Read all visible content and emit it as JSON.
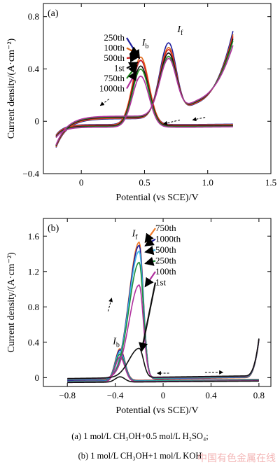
{
  "chart_data": [
    {
      "type": "line",
      "panel": "(a)",
      "xlabel": "Potential (vs SCE)/V",
      "ylabel": "Current density/(A·cm⁻²)",
      "xlim": [
        -0.3,
        1.5
      ],
      "ylim": [
        -0.4,
        0.9
      ],
      "xticks": [
        0,
        0.5,
        1.0,
        1.5
      ],
      "xtick_labels": [
        "0",
        "0.5",
        "1.0",
        "1.5"
      ],
      "yticks": [
        -0.4,
        0,
        0.4,
        0.8
      ],
      "ytick_labels": [
        "−0.4",
        "0",
        "0.4",
        "0.8"
      ],
      "peak_labels": [
        {
          "text": "I",
          "sub": "b",
          "x": 0.48,
          "y": 0.58
        },
        {
          "text": "I",
          "sub": "f",
          "x": 0.76,
          "y": 0.68
        }
      ],
      "legend_order": [
        "250th",
        "100th",
        "500th",
        "1st",
        "750th",
        "1000th"
      ],
      "series": [
        {
          "name": "250th",
          "color": "#1f1f9e",
          "ib": 0.49,
          "if": 0.61,
          "end": 0.83
        },
        {
          "name": "100th",
          "color": "#e06a1b",
          "ib": 0.52,
          "if": 0.57,
          "end": 0.8
        },
        {
          "name": "500th",
          "color": "#d62020",
          "ib": 0.5,
          "if": 0.55,
          "end": 0.78
        },
        {
          "name": "1st",
          "color": "#111111",
          "ib": 0.46,
          "if": 0.52,
          "end": 0.76
        },
        {
          "name": "750th",
          "color": "#228b22",
          "ib": 0.44,
          "if": 0.49,
          "end": 0.74
        },
        {
          "name": "1000th",
          "color": "#b0309e",
          "ib": 0.39,
          "if": 0.47,
          "end": 0.7
        }
      ],
      "grid": false
    },
    {
      "type": "line",
      "panel": "(b)",
      "xlabel": "Potential (vs SCE)/V",
      "ylabel": "Current density/(A·cm⁻²)",
      "xlim": [
        -1.0,
        0.9
      ],
      "ylim": [
        -0.1,
        1.8
      ],
      "xticks": [
        -0.8,
        -0.4,
        0,
        0.4,
        0.8
      ],
      "xtick_labels": [
        "−0.8",
        "−0.4",
        "0",
        "0.4",
        "0.8"
      ],
      "yticks": [
        0,
        0.4,
        0.8,
        1.2,
        1.6
      ],
      "ytick_labels": [
        "0",
        "0.4",
        "0.8",
        "1.2",
        "1.6"
      ],
      "peak_labels": [
        {
          "text": "I",
          "sub": "f",
          "x": -0.26,
          "y": 1.6
        },
        {
          "text": "I",
          "sub": "b",
          "x": -0.42,
          "y": 0.38
        }
      ],
      "legend_order": [
        "750th",
        "1000th",
        "500th",
        "250th",
        "100th",
        "1st"
      ],
      "series": [
        {
          "name": "750th",
          "color": "#f07a28",
          "if": 1.55,
          "ib": 0.36
        },
        {
          "name": "1000th",
          "color": "#1f1f9e",
          "if": 1.51,
          "ib": 0.35
        },
        {
          "name": "500th",
          "color": "#3fb6e6",
          "if": 1.44,
          "ib": 0.33
        },
        {
          "name": "250th",
          "color": "#1e8f3e",
          "if": 1.31,
          "ib": 0.31
        },
        {
          "name": "100th",
          "color": "#b0309e",
          "if": 1.05,
          "ib": 0.28
        },
        {
          "name": "1st",
          "color": "#111111",
          "if": 0.33,
          "ib": 0.06
        }
      ],
      "grid": false
    }
  ],
  "captions": {
    "a": "(a) 1 mol/L CH₃OH+0.5 mol/L H₂SO₄;",
    "b": "(b) 1 mol/L CH₃OH+1 mol/L KOH"
  },
  "watermark": "中国有色金属在线"
}
